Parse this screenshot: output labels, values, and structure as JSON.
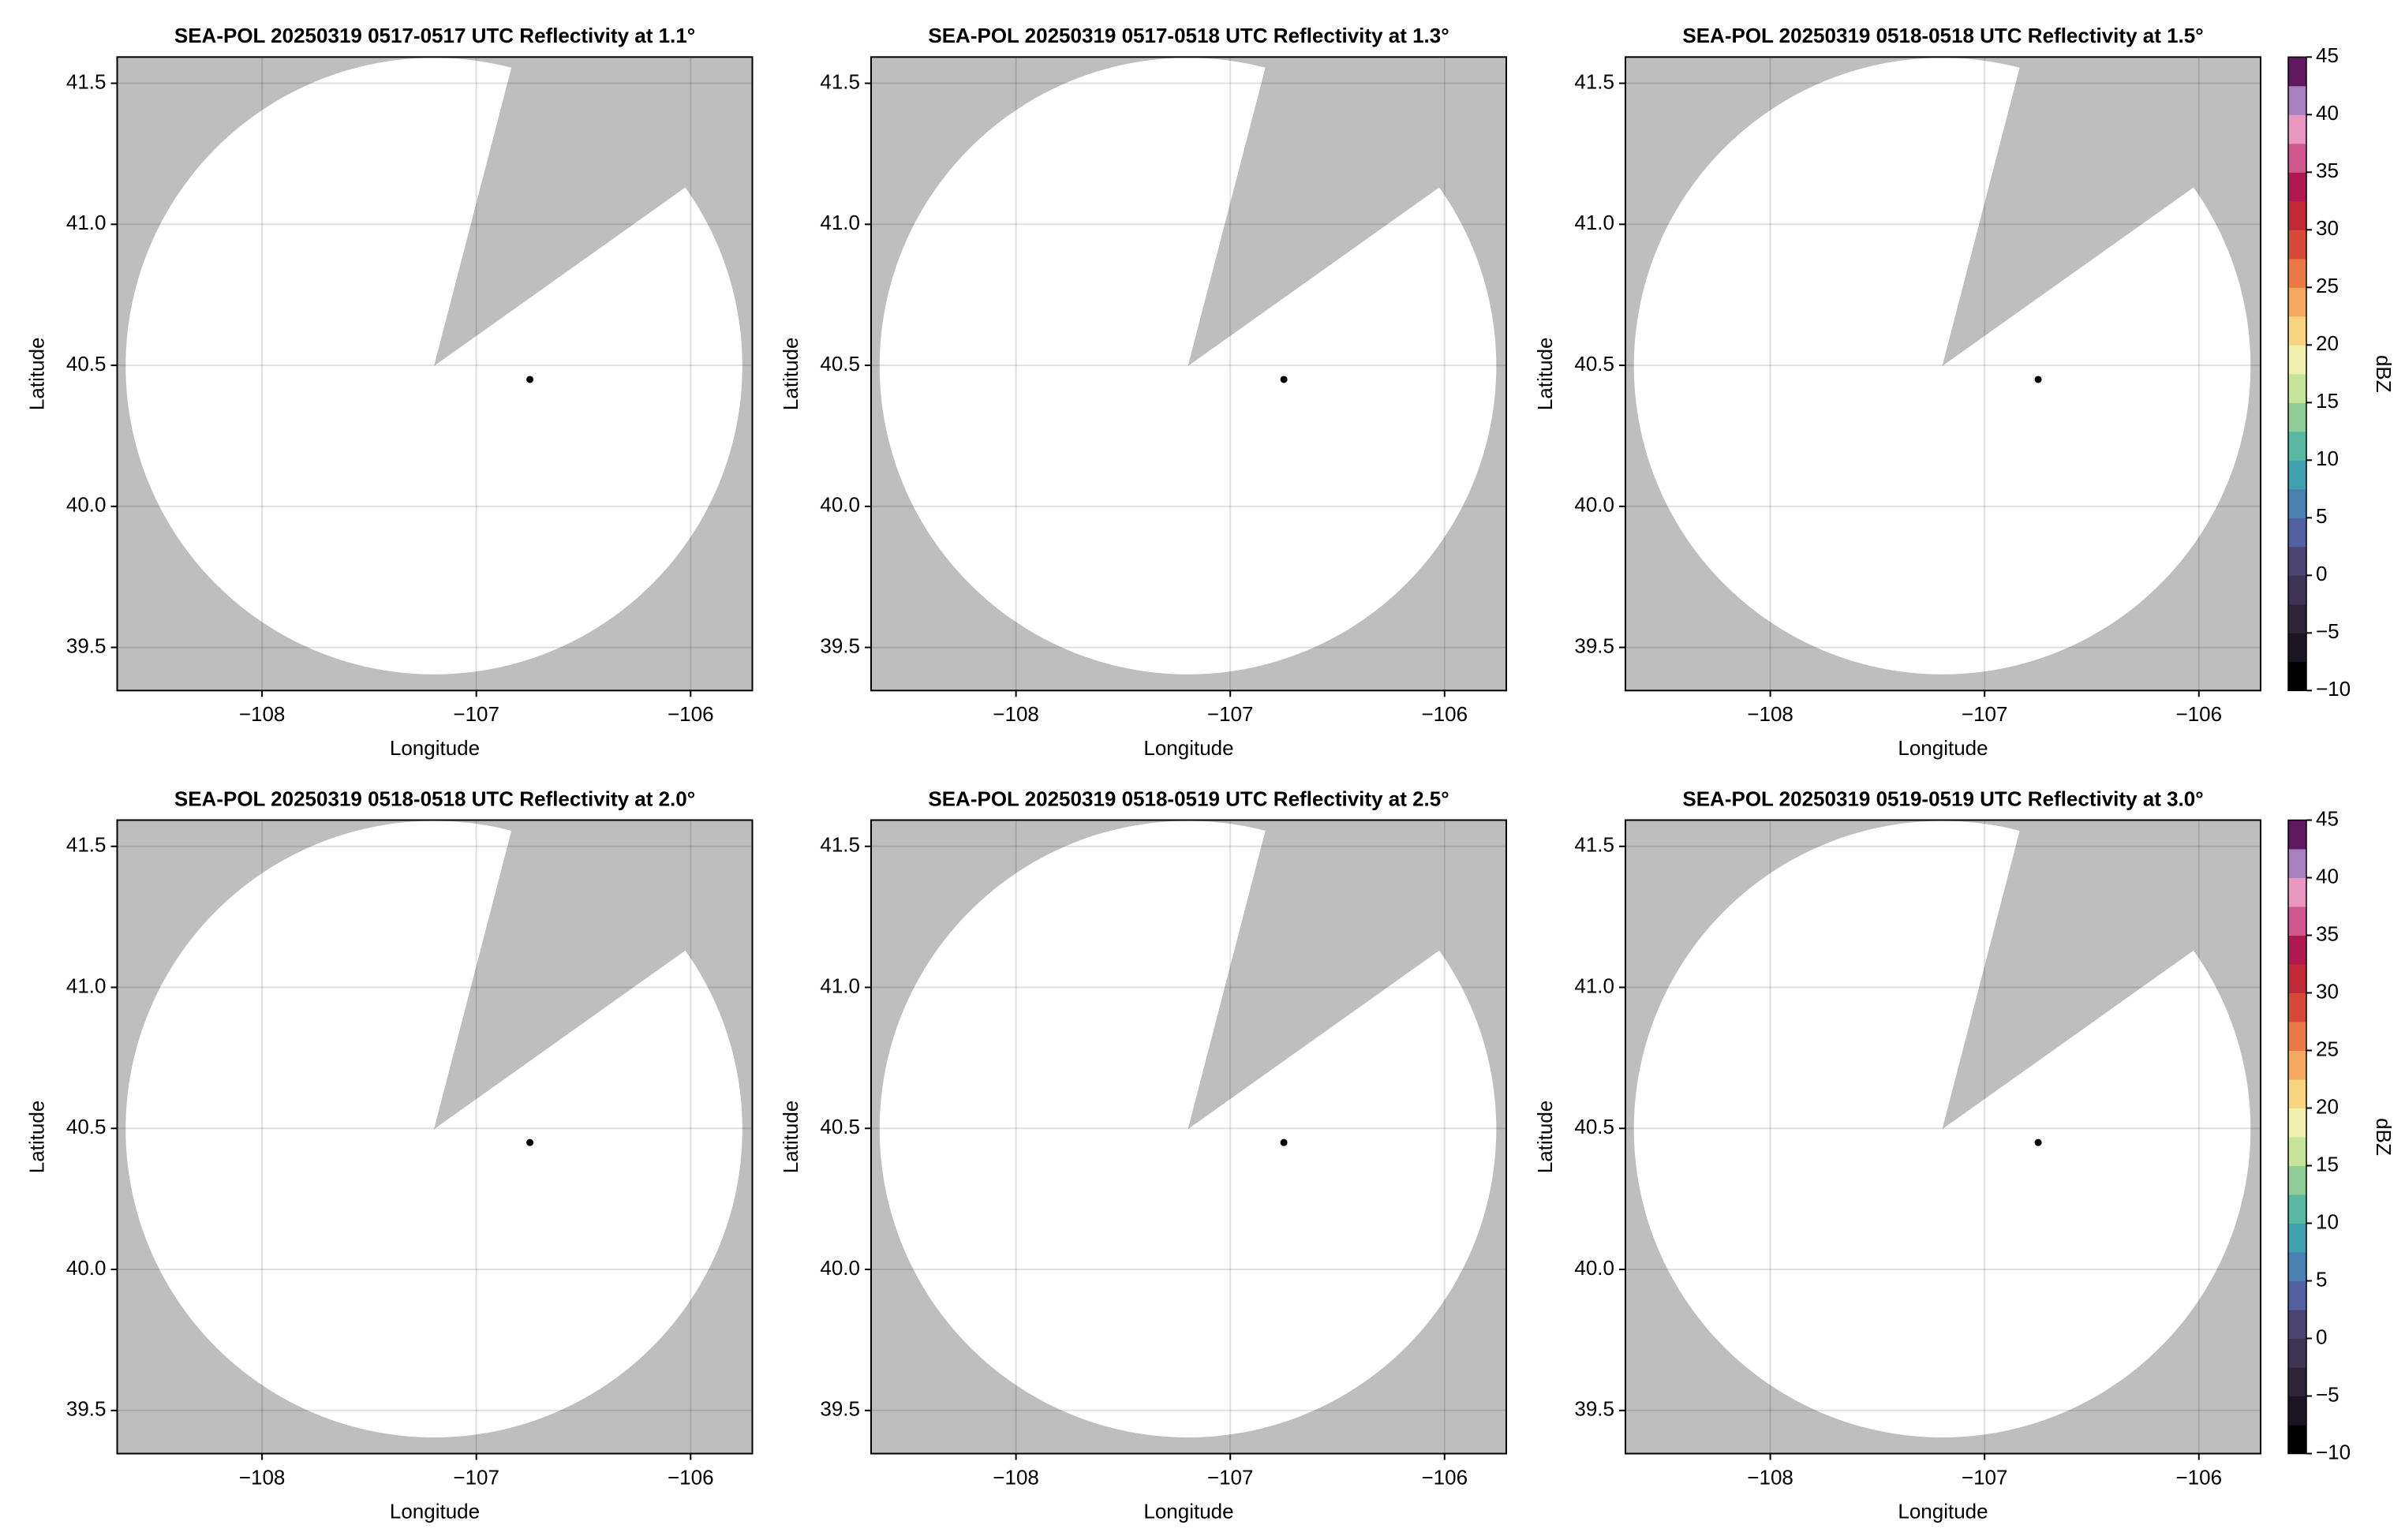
{
  "chart_data": [
    {
      "type": "radar",
      "title": "SEA-POL 20250319 0517-0517 UTC Reflectivity at 1.1°",
      "xlabel": "Longitude",
      "ylabel": "Latitude",
      "xlim": [
        -108.676,
        -105.712
      ],
      "ylim": [
        39.347,
        41.593
      ],
      "xticks": [
        {
          "value": -108,
          "label": "−108"
        },
        {
          "value": -107,
          "label": "−107"
        },
        {
          "value": -106,
          "label": "−106"
        }
      ],
      "yticks": [
        {
          "value": 39.5,
          "label": "39.5"
        },
        {
          "value": 40,
          "label": "40.0"
        },
        {
          "value": 40.5,
          "label": "40.5"
        },
        {
          "value": 41,
          "label": "41.0"
        },
        {
          "value": 41.5,
          "label": "41.5"
        }
      ],
      "grid": true,
      "mask_color": "#bebebe",
      "marker": {
        "x": -106.75,
        "y": 40.45,
        "color": "#000000"
      }
    },
    {
      "type": "radar",
      "title": "SEA-POL 20250319 0517-0518 UTC Reflectivity at 1.3°",
      "xlabel": "Longitude",
      "ylabel": "Latitude",
      "xlim": [
        -108.676,
        -105.712
      ],
      "ylim": [
        39.347,
        41.593
      ],
      "xticks": [
        {
          "value": -108,
          "label": "−108"
        },
        {
          "value": -107,
          "label": "−107"
        },
        {
          "value": -106,
          "label": "−106"
        }
      ],
      "yticks": [
        {
          "value": 39.5,
          "label": "39.5"
        },
        {
          "value": 40,
          "label": "40.0"
        },
        {
          "value": 40.5,
          "label": "40.5"
        },
        {
          "value": 41,
          "label": "41.0"
        },
        {
          "value": 41.5,
          "label": "41.5"
        }
      ],
      "grid": true,
      "mask_color": "#bebebe",
      "marker": {
        "x": -106.75,
        "y": 40.45,
        "color": "#000000"
      }
    },
    {
      "type": "radar",
      "title": "SEA-POL 20250319 0518-0518 UTC Reflectivity at 1.5°",
      "xlabel": "Longitude",
      "ylabel": "Latitude",
      "xlim": [
        -108.676,
        -105.712
      ],
      "ylim": [
        39.347,
        41.593
      ],
      "xticks": [
        {
          "value": -108,
          "label": "−108"
        },
        {
          "value": -107,
          "label": "−107"
        },
        {
          "value": -106,
          "label": "−106"
        }
      ],
      "yticks": [
        {
          "value": 39.5,
          "label": "39.5"
        },
        {
          "value": 40,
          "label": "40.0"
        },
        {
          "value": 40.5,
          "label": "40.5"
        },
        {
          "value": 41,
          "label": "41.0"
        },
        {
          "value": 41.5,
          "label": "41.5"
        }
      ],
      "grid": true,
      "mask_color": "#bebebe",
      "marker": {
        "x": -106.75,
        "y": 40.45,
        "color": "#000000"
      },
      "colorbar": {
        "label": "dBZ",
        "lim": [
          -10,
          45
        ],
        "ticks": [
          {
            "value": -10,
            "label": "−10"
          },
          {
            "value": -5,
            "label": "−5"
          },
          0,
          5,
          10,
          15,
          20,
          25,
          30,
          35,
          40,
          45
        ],
        "colors": [
          "#000000",
          "#1a1520",
          "#2d2438",
          "#3d3352",
          "#4a4470",
          "#5060a0",
          "#4a80b0",
          "#3fa0b0",
          "#5bb8a0",
          "#90cc98",
          "#c8e49a",
          "#f0f0b0",
          "#f8d480",
          "#f4a860",
          "#ec7848",
          "#d84838",
          "#c02838",
          "#b01850",
          "#d0588c",
          "#e898c0",
          "#a880c0",
          "#601860"
        ]
      }
    },
    {
      "type": "radar",
      "title": "SEA-POL 20250319 0518-0518 UTC Reflectivity at 2.0°",
      "xlabel": "Longitude",
      "ylabel": "Latitude",
      "xlim": [
        -108.676,
        -105.712
      ],
      "ylim": [
        39.347,
        41.593
      ],
      "xticks": [
        {
          "value": -108,
          "label": "−108"
        },
        {
          "value": -107,
          "label": "−107"
        },
        {
          "value": -106,
          "label": "−106"
        }
      ],
      "yticks": [
        {
          "value": 39.5,
          "label": "39.5"
        },
        {
          "value": 40,
          "label": "40.0"
        },
        {
          "value": 40.5,
          "label": "40.5"
        },
        {
          "value": 41,
          "label": "41.0"
        },
        {
          "value": 41.5,
          "label": "41.5"
        }
      ],
      "grid": true,
      "mask_color": "#bebebe",
      "marker": {
        "x": -106.75,
        "y": 40.45,
        "color": "#000000"
      }
    },
    {
      "type": "radar",
      "title": "SEA-POL 20250319 0518-0519 UTC Reflectivity at 2.5°",
      "xlabel": "Longitude",
      "ylabel": "Latitude",
      "xlim": [
        -108.676,
        -105.712
      ],
      "ylim": [
        39.347,
        41.593
      ],
      "xticks": [
        {
          "value": -108,
          "label": "−108"
        },
        {
          "value": -107,
          "label": "−107"
        },
        {
          "value": -106,
          "label": "−106"
        }
      ],
      "yticks": [
        {
          "value": 39.5,
          "label": "39.5"
        },
        {
          "value": 40,
          "label": "40.0"
        },
        {
          "value": 40.5,
          "label": "40.5"
        },
        {
          "value": 41,
          "label": "41.0"
        },
        {
          "value": 41.5,
          "label": "41.5"
        }
      ],
      "grid": true,
      "mask_color": "#bebebe",
      "marker": {
        "x": -106.75,
        "y": 40.45,
        "color": "#000000"
      }
    },
    {
      "type": "radar",
      "title": "SEA-POL 20250319 0519-0519 UTC Reflectivity at 3.0°",
      "xlabel": "Longitude",
      "ylabel": "Latitude",
      "xlim": [
        -108.676,
        -105.712
      ],
      "ylim": [
        39.347,
        41.593
      ],
      "xticks": [
        {
          "value": -108,
          "label": "−108"
        },
        {
          "value": -107,
          "label": "−107"
        },
        {
          "value": -106,
          "label": "−106"
        }
      ],
      "yticks": [
        {
          "value": 39.5,
          "label": "39.5"
        },
        {
          "value": 40,
          "label": "40.0"
        },
        {
          "value": 40.5,
          "label": "40.5"
        },
        {
          "value": 41,
          "label": "41.0"
        },
        {
          "value": 41.5,
          "label": "41.5"
        }
      ],
      "grid": true,
      "mask_color": "#bebebe",
      "marker": {
        "x": -106.75,
        "y": 40.45,
        "color": "#000000"
      },
      "colorbar": {
        "label": "dBZ",
        "lim": [
          -10,
          45
        ],
        "ticks": [
          {
            "value": -10,
            "label": "−10"
          },
          {
            "value": -5,
            "label": "−5"
          },
          0,
          5,
          10,
          15,
          20,
          25,
          30,
          35,
          40,
          45
        ],
        "colors": [
          "#000000",
          "#1a1520",
          "#2d2438",
          "#3d3352",
          "#4a4470",
          "#5060a0",
          "#4a80b0",
          "#3fa0b0",
          "#5bb8a0",
          "#90cc98",
          "#c8e49a",
          "#f0f0b0",
          "#f8d480",
          "#f4a860",
          "#ec7848",
          "#d84838",
          "#c02838",
          "#b01850",
          "#d0588c",
          "#e898c0",
          "#a880c0",
          "#601860"
        ]
      }
    }
  ]
}
